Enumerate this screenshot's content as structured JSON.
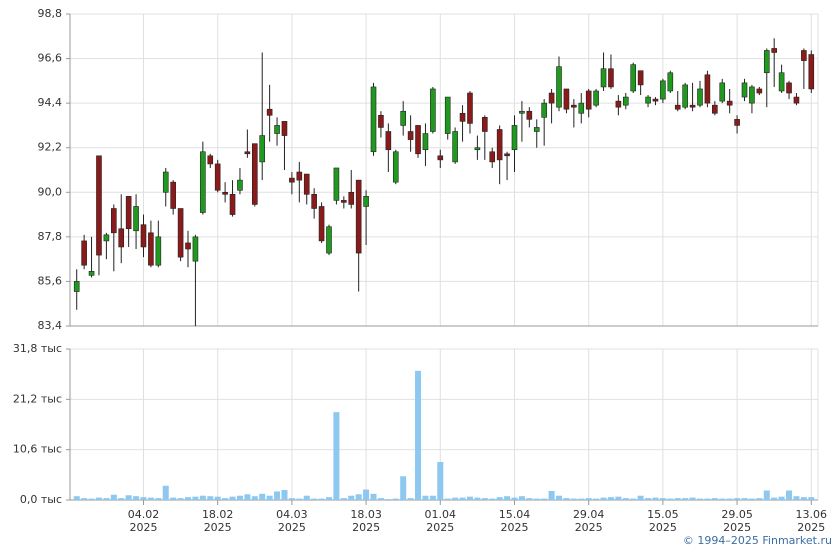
{
  "chart_data": [
    {
      "type": "candlestick",
      "open": [
        85.1,
        87.6,
        85.9,
        91.8,
        87.6,
        89.2,
        88.2,
        89.8,
        88.1,
        88.4,
        88.0,
        86.4,
        90.0,
        90.5,
        89.2,
        87.5,
        86.6,
        89.0,
        91.8,
        91.4,
        90.0,
        89.9,
        90.1,
        92.0,
        92.4,
        91.5,
        94.1,
        92.9,
        93.5,
        90.7,
        91.0,
        90.9,
        89.9,
        89.3,
        87.0,
        89.6,
        89.6,
        90.0,
        90.6,
        89.3,
        92.0,
        93.8,
        93.0,
        90.5,
        93.3,
        93.0,
        93.3,
        92.1,
        93.0,
        91.8,
        92.9,
        91.5,
        93.9,
        94.9,
        92.1,
        93.7,
        92.0,
        93.1,
        91.9,
        92.1,
        93.9,
        94.0,
        93.0,
        93.7,
        94.9,
        94.2,
        95.1,
        94.3,
        93.9,
        95.0,
        94.3,
        95.2,
        96.1,
        94.5,
        94.3,
        95.0,
        96.0,
        94.4,
        94.6,
        94.6,
        95.0,
        94.3,
        94.2,
        94.3,
        94.3,
        95.8,
        94.3,
        94.5,
        94.5,
        93.6,
        94.7,
        94.4,
        95.1,
        95.9,
        97.1,
        95.0,
        95.4,
        94.7,
        97.0,
        96.8
      ],
      "high": [
        86.2,
        87.9,
        87.8,
        91.8,
        88.0,
        89.4,
        89.9,
        89.8,
        89.9,
        88.9,
        88.6,
        88.6,
        91.2,
        90.6,
        89.2,
        88.1,
        87.9,
        92.5,
        91.9,
        91.6,
        90.5,
        90.6,
        91.2,
        93.1,
        92.4,
        96.9,
        95.3,
        93.7,
        93.5,
        91.0,
        91.5,
        90.9,
        90.2,
        89.5,
        88.4,
        91.2,
        89.8,
        91.1,
        90.6,
        90.1,
        95.4,
        94.0,
        93.4,
        92.1,
        94.5,
        93.8,
        93.3,
        93.4,
        95.2,
        92.1,
        94.7,
        93.2,
        94.3,
        95.0,
        92.8,
        93.8,
        92.2,
        93.3,
        92.0,
        93.8,
        94.5,
        94.2,
        93.6,
        94.6,
        95.1,
        96.7,
        95.1,
        94.6,
        94.9,
        95.1,
        95.1,
        96.9,
        96.8,
        94.8,
        94.9,
        96.4,
        96.0,
        94.8,
        94.7,
        95.6,
        96.0,
        95.0,
        95.4,
        95.4,
        95.5,
        96.0,
        94.5,
        95.6,
        95.1,
        93.8,
        95.6,
        95.3,
        95.2,
        97.1,
        97.6,
        96.3,
        95.5,
        94.9,
        97.1,
        97.0
      ],
      "low": [
        84.2,
        86.2,
        85.8,
        85.9,
        86.7,
        86.1,
        86.5,
        87.3,
        87.2,
        86.8,
        86.3,
        86.3,
        89.3,
        88.9,
        86.6,
        86.3,
        83.4,
        88.9,
        91.2,
        90.0,
        89.5,
        88.8,
        89.9,
        91.7,
        89.3,
        90.6,
        92.5,
        92.3,
        91.1,
        89.9,
        89.5,
        89.4,
        88.7,
        87.5,
        86.9,
        89.4,
        89.2,
        89.2,
        85.1,
        87.4,
        91.8,
        92.7,
        91.0,
        90.4,
        92.8,
        92.0,
        91.7,
        91.3,
        92.9,
        91.2,
        92.6,
        91.4,
        92.5,
        92.9,
        91.6,
        91.6,
        91.2,
        90.4,
        90.6,
        91.0,
        92.5,
        93.2,
        92.2,
        92.3,
        93.4,
        94.0,
        93.9,
        93.2,
        93.4,
        93.7,
        94.2,
        95.0,
        95.1,
        93.8,
        94.1,
        94.9,
        94.8,
        94.2,
        94.3,
        94.4,
        94.9,
        94.0,
        94.1,
        94.0,
        94.2,
        94.2,
        93.8,
        94.4,
        93.9,
        92.9,
        94.5,
        93.9,
        94.8,
        94.2,
        95.2,
        94.9,
        94.6,
        94.3,
        95.1,
        94.9
      ],
      "close": [
        85.6,
        86.4,
        86.1,
        86.9,
        87.9,
        88.0,
        87.3,
        88.2,
        89.3,
        87.3,
        86.4,
        87.8,
        91.0,
        89.2,
        86.8,
        87.2,
        87.8,
        92.0,
        91.4,
        90.1,
        89.9,
        88.9,
        90.6,
        91.9,
        89.4,
        92.8,
        93.8,
        93.3,
        92.8,
        90.5,
        90.6,
        89.9,
        89.2,
        87.6,
        88.3,
        91.2,
        89.5,
        89.4,
        87.0,
        89.8,
        95.2,
        93.2,
        92.1,
        92.0,
        94.0,
        92.6,
        91.9,
        92.9,
        95.1,
        91.6,
        94.7,
        93.0,
        93.5,
        93.4,
        92.2,
        93.0,
        91.5,
        91.6,
        91.8,
        93.3,
        94.0,
        93.6,
        93.2,
        94.4,
        94.4,
        96.2,
        94.1,
        94.2,
        94.4,
        94.1,
        95.0,
        96.1,
        95.2,
        94.2,
        94.7,
        96.3,
        95.3,
        94.7,
        94.5,
        95.5,
        95.9,
        94.1,
        95.3,
        94.2,
        95.1,
        94.4,
        93.9,
        95.4,
        94.3,
        93.3,
        95.4,
        95.2,
        94.9,
        97.0,
        96.9,
        95.9,
        94.9,
        94.4,
        96.5,
        95.1
      ],
      "up_color": "#1f9a1f",
      "down_color": "#8b1a1a",
      "ylim": [
        83.4,
        98.8
      ],
      "yticks": [
        {
          "value": 83.4,
          "label": "83,4"
        },
        {
          "value": 85.6,
          "label": "85,6"
        },
        {
          "value": 87.8,
          "label": "87,8"
        },
        {
          "value": 90.0,
          "label": "90,0"
        },
        {
          "value": 92.2,
          "label": "92,2"
        },
        {
          "value": 94.4,
          "label": "94,4"
        },
        {
          "value": 96.6,
          "label": "96,6"
        },
        {
          "value": 98.8,
          "label": "98,8"
        }
      ],
      "grid": true
    },
    {
      "type": "bar",
      "categories": [
        null,
        null,
        null,
        null,
        null,
        null,
        null,
        null,
        null,
        [
          "04.02",
          "2025"
        ],
        null,
        null,
        null,
        null,
        null,
        null,
        null,
        null,
        null,
        [
          "18.02",
          "2025"
        ],
        null,
        null,
        null,
        null,
        null,
        null,
        null,
        null,
        null,
        [
          "04.03",
          "2025"
        ],
        null,
        null,
        null,
        null,
        null,
        null,
        null,
        null,
        null,
        [
          "18.03",
          "2025"
        ],
        null,
        null,
        null,
        null,
        null,
        null,
        null,
        null,
        null,
        [
          "01.04",
          "2025"
        ],
        null,
        null,
        null,
        null,
        null,
        null,
        null,
        null,
        null,
        [
          "15.04",
          "2025"
        ],
        null,
        null,
        null,
        null,
        null,
        null,
        null,
        null,
        null,
        [
          "29.04",
          "2025"
        ],
        null,
        null,
        null,
        null,
        null,
        null,
        null,
        null,
        null,
        [
          "15.05",
          "2025"
        ],
        null,
        null,
        null,
        null,
        null,
        null,
        null,
        null,
        null,
        [
          "29.05",
          "2025"
        ],
        null,
        null,
        null,
        null,
        null,
        null,
        null,
        null,
        null,
        [
          "13.06",
          "2025"
        ]
      ],
      "values": [
        0.8,
        0.4,
        0.3,
        0.5,
        0.4,
        1.1,
        0.4,
        1.0,
        0.8,
        0.6,
        0.5,
        0.4,
        3.0,
        0.5,
        0.4,
        0.6,
        0.7,
        0.9,
        0.8,
        0.7,
        0.4,
        0.7,
        0.9,
        1.2,
        0.8,
        1.3,
        0.9,
        1.8,
        2.1,
        0.4,
        0.3,
        0.9,
        0.3,
        0.3,
        0.6,
        18.5,
        0.4,
        0.9,
        1.2,
        2.2,
        1.3,
        0.4,
        0.2,
        0.3,
        5.0,
        0.4,
        27.2,
        0.9,
        0.9,
        8.0,
        0.3,
        0.5,
        0.5,
        0.7,
        0.5,
        0.4,
        0.3,
        0.6,
        0.8,
        0.5,
        0.8,
        0.4,
        0.3,
        0.3,
        1.9,
        0.9,
        0.4,
        0.3,
        0.3,
        0.4,
        0.3,
        0.5,
        0.6,
        0.7,
        0.4,
        0.3,
        0.9,
        0.4,
        0.5,
        0.4,
        0.3,
        0.4,
        0.4,
        0.5,
        0.3,
        0.3,
        0.4,
        0.3,
        0.3,
        0.4,
        0.4,
        0.3,
        0.4,
        2.0,
        0.5,
        0.7,
        2.0,
        0.8,
        0.6,
        0.6
      ],
      "color": "#8cc8f0",
      "ylim": [
        0,
        31.8
      ],
      "yticks": [
        {
          "value": 0,
          "label": "0,0 тыс"
        },
        {
          "value": 10.6,
          "label": "10,6 тыс"
        },
        {
          "value": 21.2,
          "label": "21,2 тыс"
        },
        {
          "value": 31.8,
          "label": "31,8 тыс"
        }
      ],
      "grid": true
    }
  ],
  "credit": "© 1994–2025 Finmarket.ru"
}
